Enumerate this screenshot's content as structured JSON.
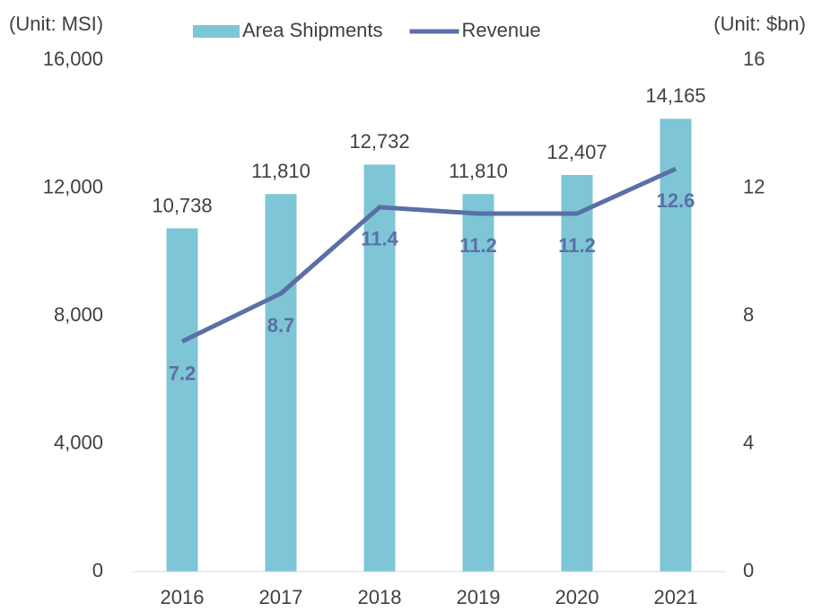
{
  "chart_data": {
    "type": "bar",
    "y_label": "(Unit: MSI)",
    "y2_label": "(Unit: $bn)",
    "categories": [
      "2016",
      "2017",
      "2018",
      "2019",
      "2020",
      "2021"
    ],
    "series": [
      {
        "name": "Area Shipments",
        "type": "bar",
        "color": "#7ec6d6",
        "values": [
          10738,
          11810,
          12732,
          11810,
          12407,
          14165
        ],
        "value_labels": [
          "10,738",
          "11,810",
          "12,732",
          "11,810",
          "12,407",
          "14,165"
        ]
      },
      {
        "name": "Revenue",
        "type": "line",
        "axis": "y2",
        "color": "#5b6fa6",
        "values": [
          7.2,
          8.7,
          11.4,
          11.2,
          11.2,
          12.6
        ]
      }
    ],
    "ylim": [
      0,
      16000
    ],
    "yticks": [
      0,
      {
        "value": 4000,
        "label": "4,000"
      },
      {
        "value": 8000,
        "label": "8,000"
      },
      {
        "value": 12000,
        "label": "12,000"
      },
      {
        "value": 16000,
        "label": "16,000"
      }
    ],
    "y2lim": [
      0,
      16
    ],
    "y2ticks": [
      0,
      4,
      8,
      12,
      16
    ],
    "legend": "top"
  }
}
